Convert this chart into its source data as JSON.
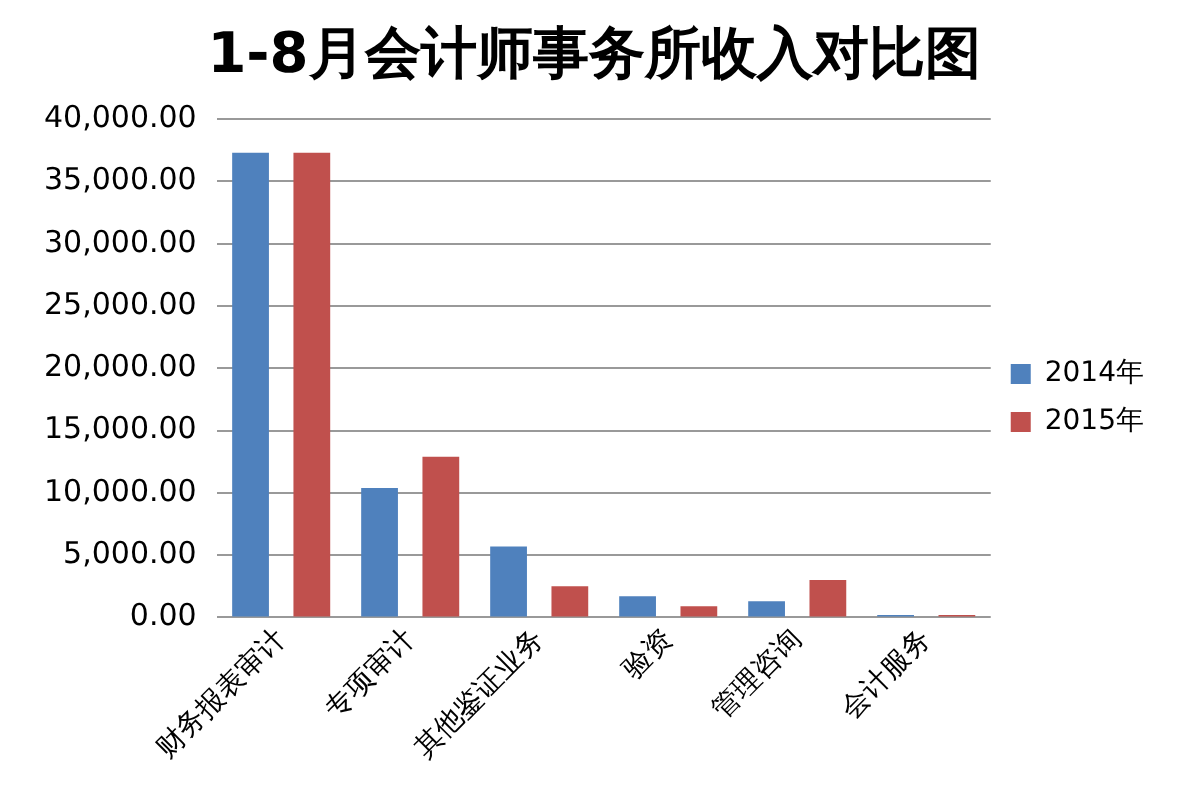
{
  "chart_data": {
    "type": "bar",
    "title": "1-8月会计师事务所收入对比图",
    "categories": [
      "财务报表审计",
      "专项审计",
      "其他鉴证业务",
      "验资",
      "管理咨询",
      "会计服务"
    ],
    "series": [
      {
        "name": "2014年",
        "color": "#4f81bd",
        "values": [
          37300,
          10400,
          5700,
          1700,
          1300,
          200
        ]
      },
      {
        "name": "2015年",
        "color": "#c0504d",
        "values": [
          37300,
          12900,
          2500,
          900,
          3000,
          200
        ]
      }
    ],
    "ylim": [
      0,
      40000
    ],
    "yticks": [
      {
        "value": 0,
        "label": "0.00"
      },
      {
        "value": 5000,
        "label": "5,000.00"
      },
      {
        "value": 10000,
        "label": "10,000.00"
      },
      {
        "value": 15000,
        "label": "15,000.00"
      },
      {
        "value": 20000,
        "label": "20,000.00"
      },
      {
        "value": 25000,
        "label": "25,000.00"
      },
      {
        "value": 30000,
        "label": "30,000.00"
      },
      {
        "value": 35000,
        "label": "35,000.00"
      },
      {
        "value": 40000,
        "label": "40,000.00"
      }
    ],
    "grid": "y",
    "legend": "right"
  }
}
